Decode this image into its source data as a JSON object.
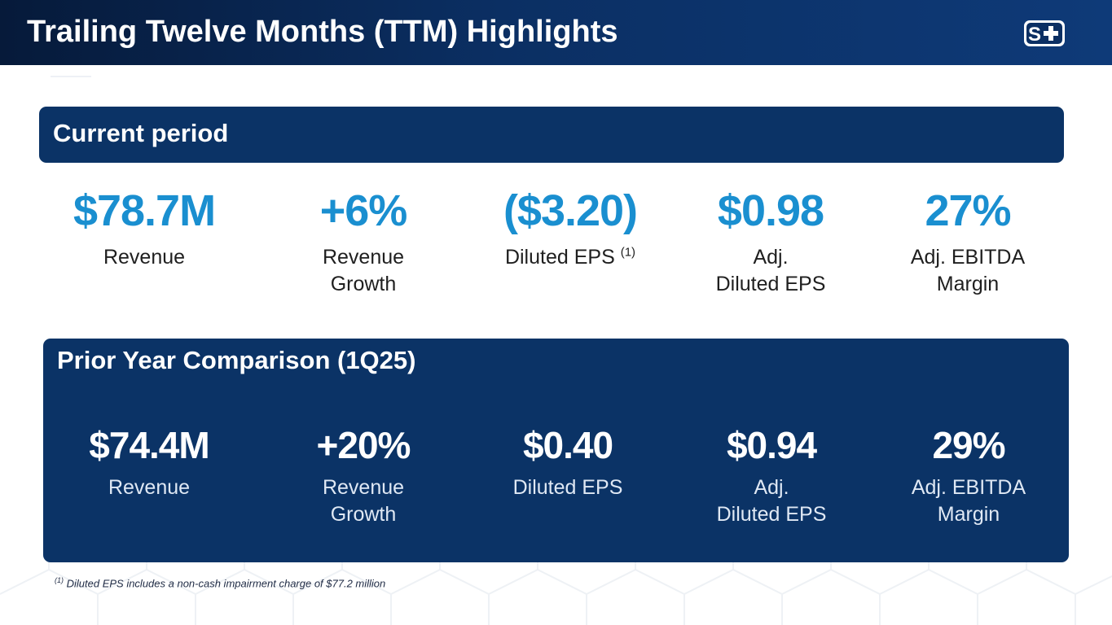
{
  "header": {
    "title": "Trailing Twelve Months (TTM) Highlights"
  },
  "logo": {
    "icon": "s-plus-logo",
    "text": "S+"
  },
  "current": {
    "title": "Current period",
    "footnote_marker": "(1)",
    "metrics": [
      {
        "value": "$78.7M",
        "label": [
          "Revenue"
        ]
      },
      {
        "value": "+6%",
        "label": [
          "Revenue",
          "Growth"
        ]
      },
      {
        "value": "($3.20)",
        "label": [
          "Diluted EPS"
        ]
      },
      {
        "value": "$0.98",
        "label": [
          "Adj.",
          "Diluted EPS"
        ]
      },
      {
        "value": "27%",
        "label": [
          "Adj. EBITDA",
          "Margin"
        ]
      }
    ]
  },
  "prior": {
    "title": "Prior Year Comparison (1Q25)",
    "metrics": [
      {
        "value": "$74.4M",
        "label": [
          "Revenue"
        ]
      },
      {
        "value": "+20%",
        "label": [
          "Revenue",
          "Growth"
        ]
      },
      {
        "value": "$0.40",
        "label": [
          "Diluted EPS"
        ]
      },
      {
        "value": "$0.94",
        "label": [
          "Adj.",
          "Diluted EPS"
        ]
      },
      {
        "value": "29%",
        "label": [
          "Adj. EBITDA",
          "Margin"
        ]
      }
    ]
  },
  "footnote": {
    "marker": "(1)",
    "text": " Diluted EPS includes a non-cash impairment charge of $77.2 million"
  },
  "colors": {
    "navy": "#0b3366",
    "accent_blue": "#1a8fd0",
    "header_dark": "#061a3a"
  }
}
